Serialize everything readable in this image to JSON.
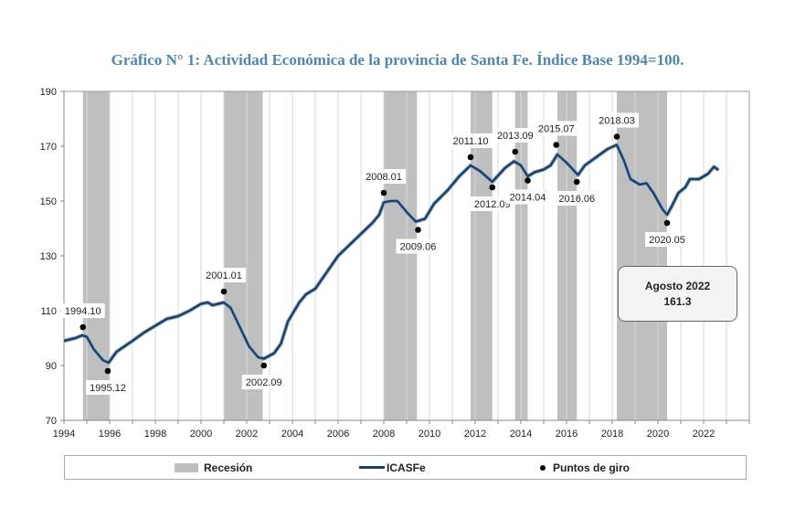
{
  "chart_data": {
    "type": "line",
    "title": "Gráfico N° 1: Actividad Económica de la provincia de Santa Fe. Índice Base 1994=100.",
    "xlabel": "",
    "ylabel": "",
    "xlim": [
      1994,
      2024
    ],
    "ylim": [
      70,
      190
    ],
    "yticks": [
      70,
      90,
      110,
      130,
      150,
      170,
      190
    ],
    "xticks": [
      1994,
      1996,
      1998,
      2000,
      2002,
      2004,
      2006,
      2008,
      2010,
      2012,
      2014,
      2016,
      2018,
      2020,
      2022
    ],
    "grid": "vertical",
    "legend_position": "bottom",
    "legend": {
      "recession": "Recesión",
      "series": "ICASFe",
      "points": "Puntos de giro"
    },
    "colors": {
      "line": "#1f3f63",
      "recession": "#bfbfbf",
      "title": "#4f86ad"
    },
    "recessions": [
      [
        1994.83,
        1996.0
      ],
      [
        2001.0,
        2002.7
      ],
      [
        2008.0,
        2009.45
      ],
      [
        2011.8,
        2012.75
      ],
      [
        2013.75,
        2014.3
      ],
      [
        2015.6,
        2016.45
      ],
      [
        2018.2,
        2020.4
      ]
    ],
    "series": [
      {
        "name": "ICASFe",
        "x": [
          1994.0,
          1994.5,
          1994.8,
          1995.0,
          1995.3,
          1995.7,
          1995.95,
          1996.3,
          1997.0,
          1997.5,
          1998.0,
          1998.5,
          1999.0,
          1999.5,
          2000.0,
          2000.3,
          2000.5,
          2001.0,
          2001.3,
          2001.7,
          2002.1,
          2002.5,
          2002.75,
          2003.2,
          2003.5,
          2003.8,
          2004.3,
          2004.6,
          2005.0,
          2005.5,
          2006.0,
          2006.5,
          2007.0,
          2007.5,
          2007.8,
          2008.0,
          2008.3,
          2008.6,
          2009.0,
          2009.4,
          2009.8,
          2010.2,
          2010.8,
          2011.3,
          2011.8,
          2012.2,
          2012.75,
          2013.3,
          2013.7,
          2014.0,
          2014.3,
          2014.6,
          2015.0,
          2015.3,
          2015.6,
          2016.0,
          2016.5,
          2016.8,
          2017.3,
          2017.8,
          2018.2,
          2018.5,
          2018.8,
          2019.2,
          2019.5,
          2019.8,
          2020.2,
          2020.4,
          2020.6,
          2020.9,
          2021.2,
          2021.4,
          2021.8,
          2022.2,
          2022.45,
          2022.65
        ],
        "y": [
          99,
          100,
          101,
          100.5,
          96,
          92,
          91,
          95,
          99,
          102,
          104.5,
          107,
          108,
          110,
          112.5,
          113,
          112,
          113,
          111,
          104,
          97,
          93,
          92.5,
          94.5,
          98,
          106,
          113,
          116,
          118,
          124,
          130,
          134,
          138,
          142,
          145,
          149.5,
          150,
          150,
          146,
          142.5,
          143.5,
          149,
          154,
          159,
          163,
          161,
          157,
          162,
          164.5,
          163,
          159,
          160.5,
          161.5,
          163,
          167,
          164,
          159.5,
          163,
          166,
          169,
          170.5,
          165,
          158,
          156,
          156.5,
          153,
          147,
          145,
          148,
          153,
          155,
          158,
          158,
          160,
          162.5,
          161.3
        ]
      }
    ],
    "turning_points": [
      {
        "label": "1994.10",
        "x": 1994.83,
        "y": 104,
        "pos": "above"
      },
      {
        "label": "1995.12",
        "x": 1995.92,
        "y": 88,
        "pos": "below"
      },
      {
        "label": "2001.01",
        "x": 2001.0,
        "y": 117,
        "pos": "above"
      },
      {
        "label": "2002.09",
        "x": 2002.75,
        "y": 90,
        "pos": "below"
      },
      {
        "label": "2008.01",
        "x": 2008.0,
        "y": 153,
        "pos": "above"
      },
      {
        "label": "2009.06",
        "x": 2009.5,
        "y": 139.5,
        "pos": "below"
      },
      {
        "label": "2011.10",
        "x": 2011.8,
        "y": 166,
        "pos": "above"
      },
      {
        "label": "2012.09",
        "x": 2012.75,
        "y": 155,
        "pos": "below"
      },
      {
        "label": "2013.09",
        "x": 2013.75,
        "y": 168,
        "pos": "above"
      },
      {
        "label": "2014.04",
        "x": 2014.3,
        "y": 157.5,
        "pos": "below"
      },
      {
        "label": "2015.07",
        "x": 2015.55,
        "y": 170.5,
        "pos": "above"
      },
      {
        "label": "2016.06",
        "x": 2016.45,
        "y": 157,
        "pos": "below"
      },
      {
        "label": "2018.03",
        "x": 2018.2,
        "y": 173.5,
        "pos": "above"
      },
      {
        "label": "2020.05",
        "x": 2020.4,
        "y": 142,
        "pos": "below"
      }
    ],
    "annotation": {
      "line1": "Agosto 2022",
      "line2": "161.3"
    }
  }
}
